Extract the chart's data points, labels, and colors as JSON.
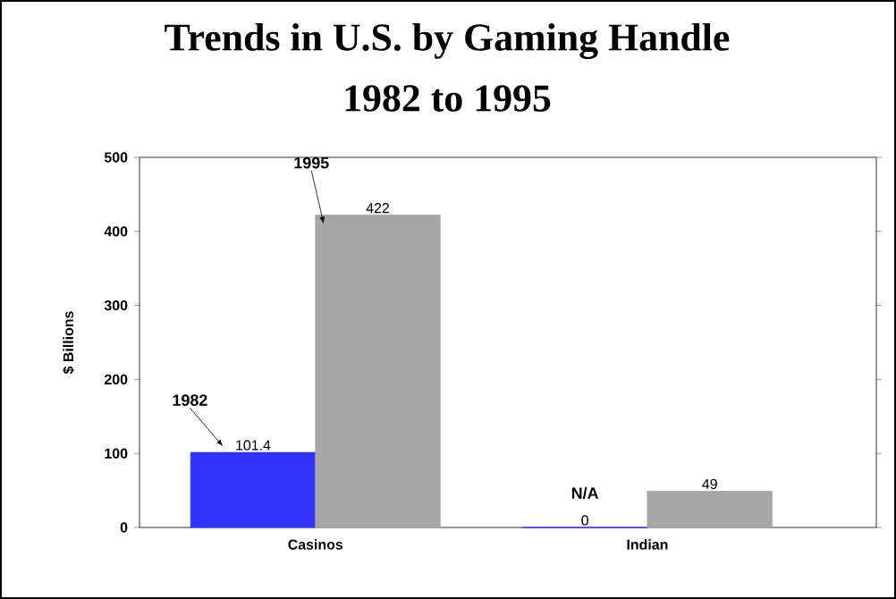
{
  "chart_data": {
    "type": "bar",
    "title": "Trends in U.S. by Gaming Handle",
    "subtitle": "1982 to 1995",
    "ylabel": "$ Billions",
    "categories": [
      "Casinos",
      "Indian"
    ],
    "series": [
      {
        "name": "1982",
        "color": "#3333ff",
        "values": [
          101.4,
          0
        ]
      },
      {
        "name": "1995",
        "color": "#a6a6a6",
        "values": [
          422,
          49
        ]
      }
    ],
    "ylim": [
      0,
      500
    ],
    "yticks": [
      0,
      100,
      200,
      300,
      400,
      500
    ],
    "grid": false,
    "data_labels": true,
    "annotations": [
      "N/A"
    ]
  }
}
